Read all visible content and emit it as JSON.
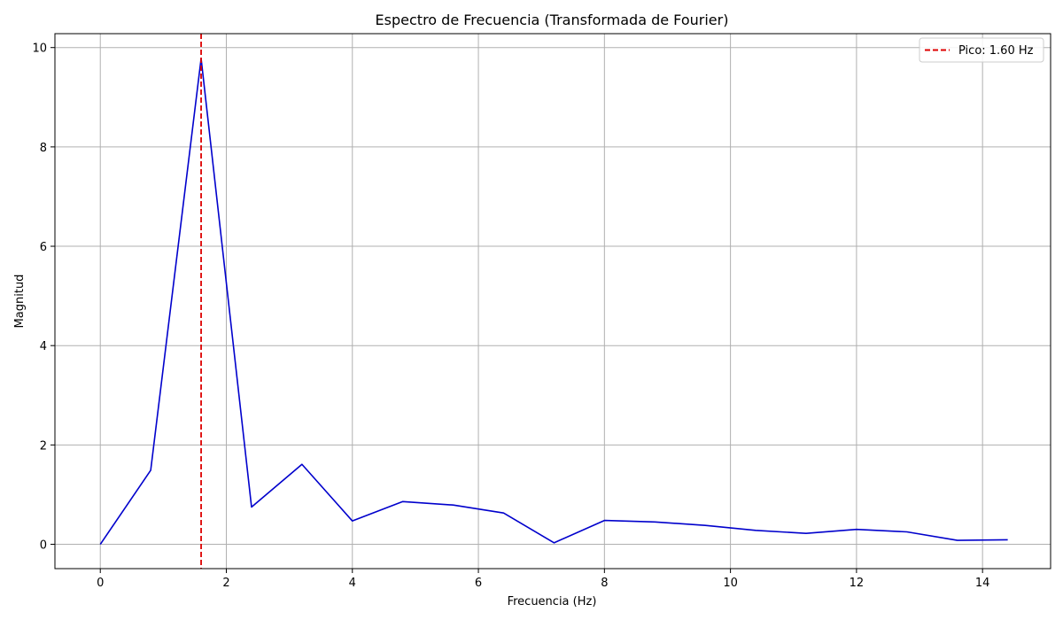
{
  "chart_data": {
    "type": "line",
    "title": "Espectro de Frecuencia (Transformada de Fourier)",
    "xlabel": "Frecuencia (Hz)",
    "ylabel": "Magnitud",
    "xlim": [
      -0.72,
      15.08
    ],
    "ylim": [
      -0.49,
      10.28
    ],
    "xticks": [
      0,
      2,
      4,
      6,
      8,
      10,
      12,
      14
    ],
    "yticks": [
      0,
      2,
      4,
      6,
      8,
      10
    ],
    "grid": true,
    "legend_position": "top-right",
    "series": [
      {
        "color": "#0000cc",
        "x": [
          0,
          0.8,
          1.6,
          2.4,
          3.2,
          4.0,
          4.8,
          5.6,
          6.4,
          7.2,
          8.0,
          8.8,
          9.6,
          10.4,
          11.2,
          12.0,
          12.8,
          13.6,
          14.4
        ],
        "y": [
          0.0,
          1.49,
          9.78,
          0.75,
          1.61,
          0.47,
          0.86,
          0.79,
          0.63,
          0.03,
          0.48,
          0.45,
          0.38,
          0.28,
          0.22,
          0.3,
          0.25,
          0.08,
          0.09
        ]
      }
    ],
    "annotations": [
      {
        "type": "vline",
        "x": 1.6,
        "color": "#dd0000",
        "style": "dashed",
        "label": "Pico: 1.60 Hz"
      }
    ]
  }
}
